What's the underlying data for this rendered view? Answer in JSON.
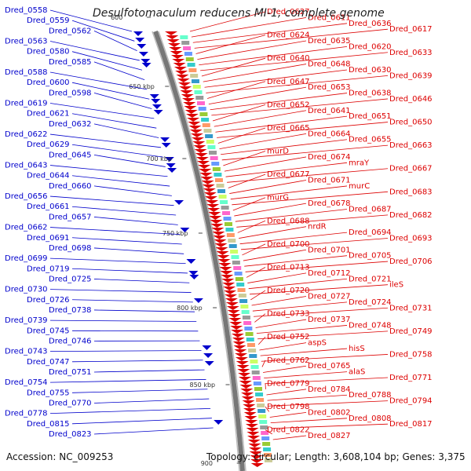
{
  "title": "Desulfotomaculum reducens MI-1, complete genome",
  "accession": "Accession: NC_009253",
  "summary": "Topology: circular; Length: 3,608,104 bp; Genes: 3,375",
  "colors": {
    "forward": "#0000cc",
    "reverse": "#dd0000",
    "backbone": "#888888"
  },
  "ticks": [
    "600",
    "650 kbp",
    "700 kbp",
    "750 kbp",
    "800 kbp",
    "850 kbp",
    "900"
  ],
  "left_labels": [
    "Dred_0558",
    "Dred_0559",
    "Dred_0562",
    "Dred_0563",
    "Dred_0580",
    "Dred_0585",
    "Dred_0588",
    "Dred_0600",
    "Dred_0598",
    "Dred_0619",
    "Dred_0621",
    "Dred_0632",
    "Dred_0622",
    "Dred_0629",
    "Dred_0645",
    "Dred_0643",
    "Dred_0644",
    "Dred_0660",
    "Dred_0656",
    "Dred_0661",
    "Dred_0657",
    "Dred_0662",
    "Dred_0691",
    "Dred_0698",
    "Dred_0699",
    "Dred_0719",
    "Dred_0725",
    "Dred_0730",
    "Dred_0726",
    "Dred_0738",
    "Dred_0739",
    "Dred_0745",
    "Dred_0746",
    "Dred_0743",
    "Dred_0747",
    "Dred_0751",
    "Dred_0754",
    "Dred_0755",
    "Dred_0770",
    "Dred_0778",
    "Dred_0815",
    "Dred_0823"
  ],
  "right_labels": [
    "Dred_0627",
    "Dred_0611",
    "Dred_0636",
    "Dred_0617",
    "Dred_0624",
    "Dred_0635",
    "Dred_0620",
    "Dred_0633",
    "Dred_0640",
    "Dred_0648",
    "Dred_0630",
    "Dred_0639",
    "Dred_0647",
    "Dred_0653",
    "Dred_0638",
    "Dred_0646",
    "Dred_0652",
    "Dred_0641",
    "Dred_0651",
    "Dred_0650",
    "Dred_0665",
    "Dred_0664",
    "Dred_0655",
    "Dred_0663",
    "murD",
    "Dred_0674",
    "mraY",
    "Dred_0667",
    "Dred_0677",
    "Dred_0671",
    "murC",
    "Dred_0683",
    "murG",
    "Dred_0678",
    "Dred_0687",
    "Dred_0682",
    "Dred_0688",
    "nrdR",
    "Dred_0694",
    "Dred_0693",
    "Dred_0700",
    "Dred_0701",
    "Dred_0705",
    "Dred_0706",
    "Dred_0713",
    "Dred_0712",
    "Dred_0721",
    "ileS",
    "Dred_0720",
    "Dred_0727",
    "Dred_0724",
    "Dred_0731",
    "Dred_0733",
    "Dred_0737",
    "Dred_0748",
    "Dred_0749",
    "Dred_0752",
    "aspS",
    "hisS",
    "Dred_0758",
    "Dred_0762",
    "Dred_0765",
    "alaS",
    "Dred_0771",
    "Dred_0779",
    "Dred_0784",
    "Dred_0788",
    "Dred_0794",
    "Dred_0798",
    "Dred_0802",
    "Dred_0808",
    "Dred_0817",
    "Dred_0822",
    "Dred_0827"
  ]
}
